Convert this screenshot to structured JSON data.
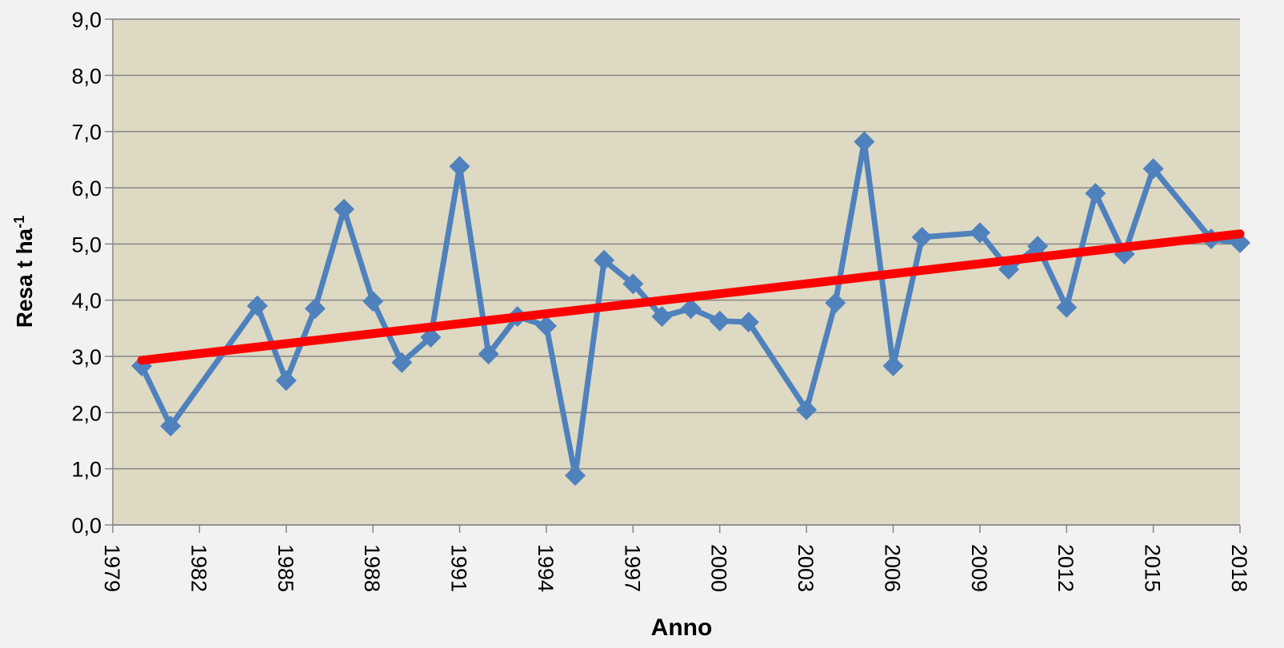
{
  "chart_data": {
    "type": "line",
    "xlabel": "Anno",
    "ylabel": "Resa t ha",
    "ylabel_sup": "-1",
    "xlim": [
      1979,
      2018
    ],
    "xticks": [
      1979,
      1982,
      1985,
      1988,
      1991,
      1994,
      1997,
      2000,
      2003,
      2006,
      2009,
      2012,
      2015,
      2018
    ],
    "ylim": [
      0,
      9
    ],
    "yticks": [
      {
        "value": 0,
        "label": "0,0"
      },
      {
        "value": 1,
        "label": "1,0"
      },
      {
        "value": 2,
        "label": "2,0"
      },
      {
        "value": 3,
        "label": "3,0"
      },
      {
        "value": 4,
        "label": "4,0"
      },
      {
        "value": 5,
        "label": "5,0"
      },
      {
        "value": 6,
        "label": "6,0"
      },
      {
        "value": 7,
        "label": "7,0"
      },
      {
        "value": 8,
        "label": "8,0"
      },
      {
        "value": 9,
        "label": "9,0"
      }
    ],
    "grid": true,
    "plot_background": "#ddd9c3",
    "series": [
      {
        "color": "#4f81bd",
        "marker": "diamond",
        "x": [
          1980,
          1981,
          1984,
          1985,
          1986,
          1987,
          1988,
          1989,
          1990,
          1991,
          1992,
          1993,
          1994,
          1995,
          1996,
          1997,
          1998,
          1999,
          2000,
          2001,
          2003,
          2004,
          2005,
          2006,
          2007,
          2009,
          2010,
          2011,
          2012,
          2013,
          2014,
          2015,
          2017,
          2018
        ],
        "values": [
          2.83,
          1.76,
          3.9,
          2.57,
          3.85,
          5.62,
          3.98,
          2.89,
          3.34,
          6.38,
          3.04,
          3.71,
          3.54,
          0.88,
          4.71,
          4.29,
          3.71,
          3.85,
          3.63,
          3.61,
          2.05,
          3.95,
          6.82,
          2.83,
          5.12,
          5.2,
          4.55,
          4.96,
          3.87,
          5.9,
          4.82,
          6.34,
          5.09,
          5.02
        ]
      },
      {
        "color": "#ff0000",
        "marker": "none",
        "x": [
          1980,
          2018
        ],
        "values": [
          2.93,
          5.18
        ]
      }
    ]
  }
}
